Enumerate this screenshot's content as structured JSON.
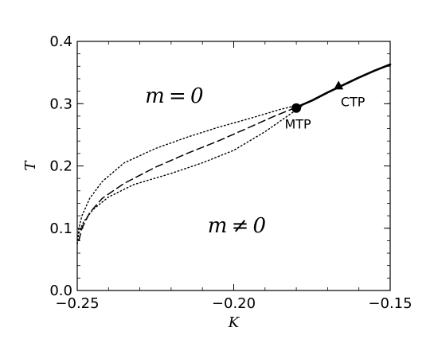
{
  "chart_data": {
    "type": "line",
    "xlabel": "K",
    "ylabel": "T",
    "xlim": [
      -0.25,
      -0.15
    ],
    "ylim": [
      0.0,
      0.4
    ],
    "x_ticks": [
      "−0.25",
      "−0.20",
      "−0.15"
    ],
    "y_ticks": [
      "0.0",
      "0.1",
      "0.2",
      "0.3",
      "0.4"
    ],
    "grid": false,
    "series": [
      {
        "style": "solid",
        "points": [
          [
            -0.18,
            0.294
          ],
          [
            -0.175,
            0.305
          ],
          [
            -0.17,
            0.318
          ],
          [
            -0.165,
            0.33
          ],
          [
            -0.16,
            0.342
          ],
          [
            -0.155,
            0.353
          ],
          [
            -0.15,
            0.363
          ]
        ]
      },
      {
        "style": "dashed",
        "points": [
          [
            -0.2495,
            0.08
          ],
          [
            -0.2485,
            0.1
          ],
          [
            -0.246,
            0.125
          ],
          [
            -0.242,
            0.148
          ],
          [
            -0.235,
            0.172
          ],
          [
            -0.225,
            0.198
          ],
          [
            -0.215,
            0.22
          ],
          [
            -0.205,
            0.24
          ],
          [
            -0.195,
            0.262
          ],
          [
            -0.187,
            0.28
          ],
          [
            -0.18,
            0.294
          ]
        ]
      },
      {
        "style": "dotted",
        "points": [
          [
            -0.25,
            0.075
          ],
          [
            -0.2495,
            0.092
          ],
          [
            -0.248,
            0.11
          ],
          [
            -0.245,
            0.13
          ],
          [
            -0.24,
            0.15
          ],
          [
            -0.232,
            0.17
          ],
          [
            -0.22,
            0.188
          ],
          [
            -0.21,
            0.205
          ],
          [
            -0.2,
            0.225
          ],
          [
            -0.19,
            0.255
          ],
          [
            -0.182,
            0.283
          ],
          [
            -0.178,
            0.297
          ]
        ]
      },
      {
        "style": "dotted",
        "points": [
          [
            -0.25,
            0.075
          ],
          [
            -0.2495,
            0.1
          ],
          [
            -0.2485,
            0.12
          ],
          [
            -0.246,
            0.148
          ],
          [
            -0.242,
            0.175
          ],
          [
            -0.235,
            0.205
          ],
          [
            -0.225,
            0.228
          ],
          [
            -0.215,
            0.246
          ],
          [
            -0.205,
            0.262
          ],
          [
            -0.195,
            0.276
          ],
          [
            -0.185,
            0.291
          ],
          [
            -0.18,
            0.297
          ]
        ]
      }
    ],
    "markers": [
      {
        "label": "MTP",
        "x": -0.18,
        "y": 0.293,
        "shape": "circle"
      },
      {
        "label": "CTP",
        "x": -0.1665,
        "y": 0.328,
        "shape": "triangle"
      }
    ],
    "annotations": [
      {
        "text": "m = 0",
        "x": -0.219,
        "y": 0.313
      },
      {
        "text": "m ≠ 0",
        "x": -0.199,
        "y": 0.105
      }
    ]
  }
}
